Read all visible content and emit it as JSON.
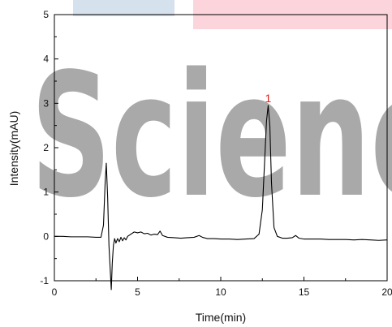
{
  "chart_data": {
    "type": "line",
    "title": "",
    "xlabel": "Time(min)",
    "ylabel": "Intensity(mAU)",
    "xlim": [
      0,
      20
    ],
    "ylim": [
      -1,
      5
    ],
    "xticks": [
      "0",
      "5",
      "10",
      "15",
      "20"
    ],
    "yticks": [
      "-1",
      "0",
      "1",
      "2",
      "3",
      "4",
      "5"
    ],
    "grid": false,
    "series": [
      {
        "color": "#000000",
        "x": [
          0,
          0.5,
          1.0,
          1.5,
          2.0,
          2.5,
          2.8,
          2.95,
          3.05,
          3.12,
          3.2,
          3.28,
          3.35,
          3.42,
          3.48,
          3.55,
          3.62,
          3.7,
          3.8,
          3.9,
          4.0,
          4.1,
          4.2,
          4.3,
          4.4,
          4.6,
          4.8,
          5.0,
          5.2,
          5.4,
          5.6,
          5.8,
          6.0,
          6.2,
          6.35,
          6.5,
          6.8,
          7.2,
          7.6,
          8.0,
          8.4,
          8.7,
          8.9,
          9.2,
          9.6,
          10.0,
          10.5,
          11.0,
          11.5,
          12.0,
          12.3,
          12.5,
          12.65,
          12.75,
          12.85,
          12.95,
          13.05,
          13.2,
          13.4,
          13.7,
          14.0,
          14.3,
          14.5,
          14.7,
          15.0,
          15.5,
          16.0,
          16.5,
          17.0,
          17.5,
          18.0,
          18.5,
          19.0,
          19.5,
          20.0
        ],
        "y": [
          0.0,
          0.0,
          -0.01,
          -0.01,
          -0.01,
          -0.02,
          -0.02,
          0.25,
          1.2,
          1.65,
          0.9,
          -0.2,
          -0.7,
          -1.2,
          -0.6,
          -0.2,
          -0.05,
          -0.15,
          -0.05,
          -0.12,
          -0.02,
          -0.1,
          -0.03,
          -0.08,
          0.0,
          0.05,
          0.1,
          0.08,
          0.1,
          0.06,
          0.07,
          0.03,
          0.05,
          0.04,
          0.12,
          0.02,
          -0.02,
          -0.03,
          -0.04,
          -0.03,
          -0.02,
          0.02,
          -0.02,
          -0.05,
          -0.05,
          -0.06,
          -0.06,
          -0.07,
          -0.06,
          -0.05,
          0.05,
          0.6,
          1.8,
          2.6,
          2.95,
          2.5,
          1.2,
          0.2,
          0.0,
          -0.04,
          -0.04,
          -0.03,
          0.02,
          -0.04,
          -0.06,
          -0.06,
          -0.06,
          -0.07,
          -0.07,
          -0.07,
          -0.08,
          -0.07,
          -0.08,
          -0.09,
          -0.08
        ]
      }
    ],
    "annotations": [
      {
        "text": "1",
        "x": 12.85,
        "y": 2.95,
        "color": "#e0201b"
      }
    ],
    "watermark": {
      "text": "Scienc",
      "color": "#a9a9a9"
    }
  }
}
